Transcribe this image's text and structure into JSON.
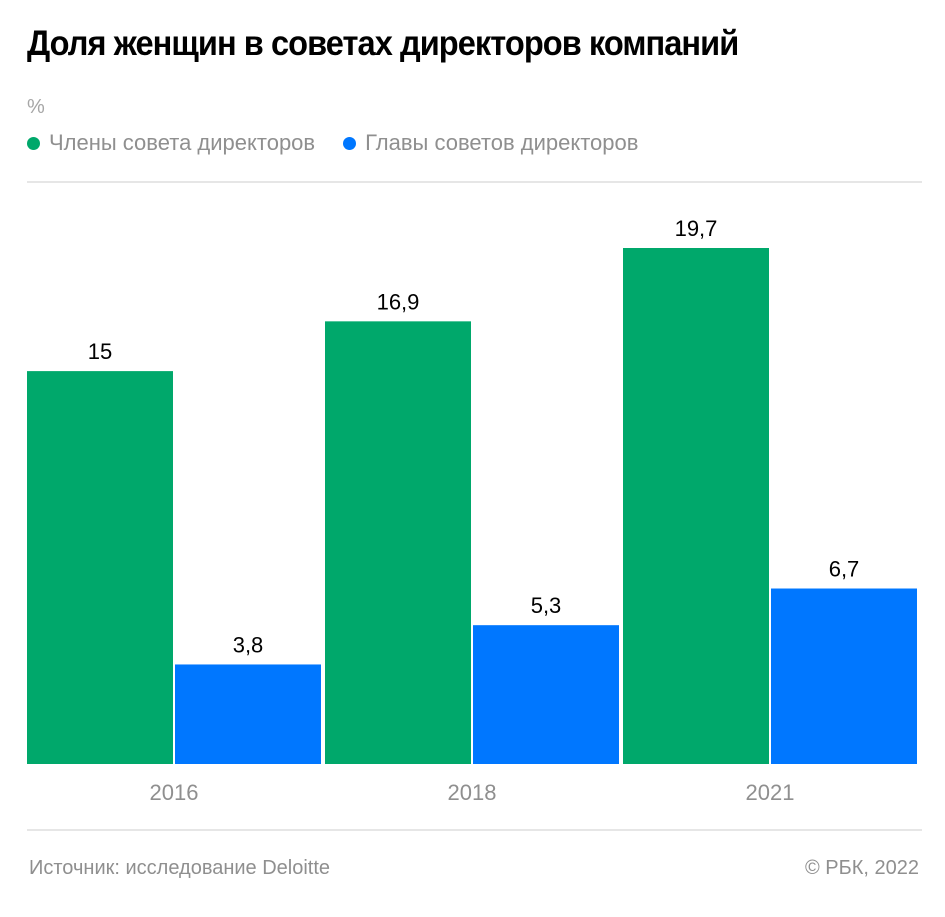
{
  "title": "Доля женщин в советах директоров компаний",
  "unit": "%",
  "colors": {
    "members": "#00a86b",
    "chairs": "#0077ff",
    "axis_text": "#8f8f8f",
    "value_text": "#000000"
  },
  "legend": [
    {
      "label": "Члены совета директоров",
      "color": "#00a86b"
    },
    {
      "label": "Главы советов директоров",
      "color": "#0077ff"
    }
  ],
  "footer": {
    "source": "Источник: исследование Deloitte",
    "copyright": "© РБК, 2022"
  },
  "chart_data": {
    "type": "bar",
    "title": "Доля женщин в советах директоров компаний",
    "xlabel": "",
    "ylabel": "%",
    "categories": [
      "2016",
      "2018",
      "2021"
    ],
    "series": [
      {
        "name": "Члены совета директоров",
        "values": [
          15,
          16.9,
          19.7
        ],
        "labels": [
          "15",
          "16,9",
          "19,7"
        ],
        "color": "#00a86b"
      },
      {
        "name": "Главы советов директоров",
        "values": [
          3.8,
          5.3,
          6.7
        ],
        "labels": [
          "3,8",
          "5,3",
          "6,7"
        ],
        "color": "#0077ff"
      }
    ],
    "ylim": [
      0,
      19.7
    ],
    "grid": false,
    "legend_position": "top-left"
  }
}
